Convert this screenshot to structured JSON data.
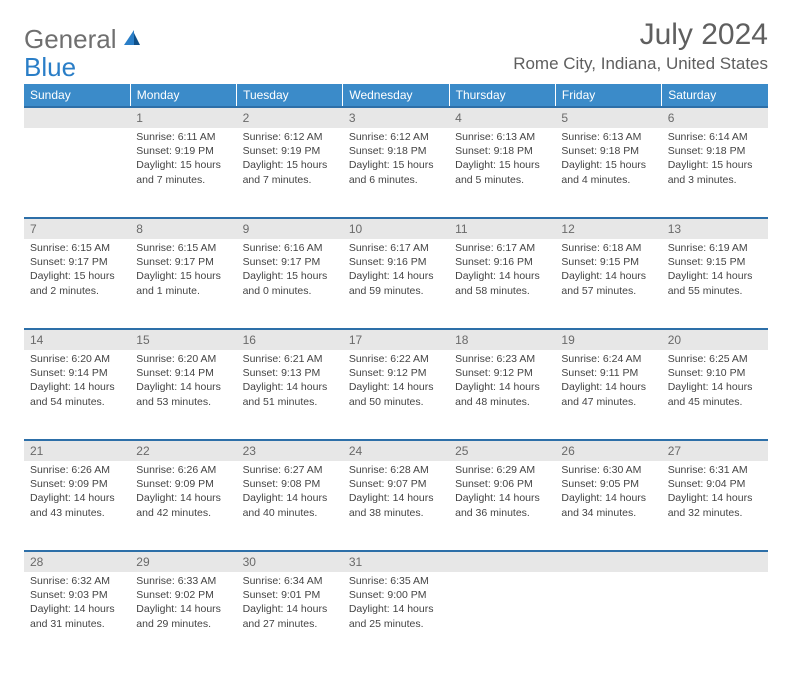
{
  "logo": {
    "general": "General",
    "blue": "Blue"
  },
  "title": "July 2024",
  "location": "Rome City, Indiana, United States",
  "dayHeaders": [
    "Sunday",
    "Monday",
    "Tuesday",
    "Wednesday",
    "Thursday",
    "Friday",
    "Saturday"
  ],
  "colors": {
    "header_bg": "#3b8bc9",
    "header_text": "#ffffff",
    "daynum_bg": "#e7e7e7",
    "border_top": "#2d6fa8",
    "logo_general": "#6f6f6f",
    "logo_blue": "#2a7ec7",
    "title_color": "#5f5f5f",
    "body_text": "#444444",
    "page_bg": "#ffffff"
  },
  "typography": {
    "month_title_pt": 30,
    "location_pt": 17,
    "header_pt": 12,
    "daynum_pt": 12,
    "cell_pt": 10.5,
    "logo_pt": 26
  },
  "weeks": [
    {
      "nums": [
        "",
        "1",
        "2",
        "3",
        "4",
        "5",
        "6"
      ],
      "cells": [
        null,
        {
          "sunrise": "Sunrise: 6:11 AM",
          "sunset": "Sunset: 9:19 PM",
          "day1": "Daylight: 15 hours",
          "day2": "and 7 minutes."
        },
        {
          "sunrise": "Sunrise: 6:12 AM",
          "sunset": "Sunset: 9:19 PM",
          "day1": "Daylight: 15 hours",
          "day2": "and 7 minutes."
        },
        {
          "sunrise": "Sunrise: 6:12 AM",
          "sunset": "Sunset: 9:18 PM",
          "day1": "Daylight: 15 hours",
          "day2": "and 6 minutes."
        },
        {
          "sunrise": "Sunrise: 6:13 AM",
          "sunset": "Sunset: 9:18 PM",
          "day1": "Daylight: 15 hours",
          "day2": "and 5 minutes."
        },
        {
          "sunrise": "Sunrise: 6:13 AM",
          "sunset": "Sunset: 9:18 PM",
          "day1": "Daylight: 15 hours",
          "day2": "and 4 minutes."
        },
        {
          "sunrise": "Sunrise: 6:14 AM",
          "sunset": "Sunset: 9:18 PM",
          "day1": "Daylight: 15 hours",
          "day2": "and 3 minutes."
        }
      ]
    },
    {
      "nums": [
        "7",
        "8",
        "9",
        "10",
        "11",
        "12",
        "13"
      ],
      "cells": [
        {
          "sunrise": "Sunrise: 6:15 AM",
          "sunset": "Sunset: 9:17 PM",
          "day1": "Daylight: 15 hours",
          "day2": "and 2 minutes."
        },
        {
          "sunrise": "Sunrise: 6:15 AM",
          "sunset": "Sunset: 9:17 PM",
          "day1": "Daylight: 15 hours",
          "day2": "and 1 minute."
        },
        {
          "sunrise": "Sunrise: 6:16 AM",
          "sunset": "Sunset: 9:17 PM",
          "day1": "Daylight: 15 hours",
          "day2": "and 0 minutes."
        },
        {
          "sunrise": "Sunrise: 6:17 AM",
          "sunset": "Sunset: 9:16 PM",
          "day1": "Daylight: 14 hours",
          "day2": "and 59 minutes."
        },
        {
          "sunrise": "Sunrise: 6:17 AM",
          "sunset": "Sunset: 9:16 PM",
          "day1": "Daylight: 14 hours",
          "day2": "and 58 minutes."
        },
        {
          "sunrise": "Sunrise: 6:18 AM",
          "sunset": "Sunset: 9:15 PM",
          "day1": "Daylight: 14 hours",
          "day2": "and 57 minutes."
        },
        {
          "sunrise": "Sunrise: 6:19 AM",
          "sunset": "Sunset: 9:15 PM",
          "day1": "Daylight: 14 hours",
          "day2": "and 55 minutes."
        }
      ]
    },
    {
      "nums": [
        "14",
        "15",
        "16",
        "17",
        "18",
        "19",
        "20"
      ],
      "cells": [
        {
          "sunrise": "Sunrise: 6:20 AM",
          "sunset": "Sunset: 9:14 PM",
          "day1": "Daylight: 14 hours",
          "day2": "and 54 minutes."
        },
        {
          "sunrise": "Sunrise: 6:20 AM",
          "sunset": "Sunset: 9:14 PM",
          "day1": "Daylight: 14 hours",
          "day2": "and 53 minutes."
        },
        {
          "sunrise": "Sunrise: 6:21 AM",
          "sunset": "Sunset: 9:13 PM",
          "day1": "Daylight: 14 hours",
          "day2": "and 51 minutes."
        },
        {
          "sunrise": "Sunrise: 6:22 AM",
          "sunset": "Sunset: 9:12 PM",
          "day1": "Daylight: 14 hours",
          "day2": "and 50 minutes."
        },
        {
          "sunrise": "Sunrise: 6:23 AM",
          "sunset": "Sunset: 9:12 PM",
          "day1": "Daylight: 14 hours",
          "day2": "and 48 minutes."
        },
        {
          "sunrise": "Sunrise: 6:24 AM",
          "sunset": "Sunset: 9:11 PM",
          "day1": "Daylight: 14 hours",
          "day2": "and 47 minutes."
        },
        {
          "sunrise": "Sunrise: 6:25 AM",
          "sunset": "Sunset: 9:10 PM",
          "day1": "Daylight: 14 hours",
          "day2": "and 45 minutes."
        }
      ]
    },
    {
      "nums": [
        "21",
        "22",
        "23",
        "24",
        "25",
        "26",
        "27"
      ],
      "cells": [
        {
          "sunrise": "Sunrise: 6:26 AM",
          "sunset": "Sunset: 9:09 PM",
          "day1": "Daylight: 14 hours",
          "day2": "and 43 minutes."
        },
        {
          "sunrise": "Sunrise: 6:26 AM",
          "sunset": "Sunset: 9:09 PM",
          "day1": "Daylight: 14 hours",
          "day2": "and 42 minutes."
        },
        {
          "sunrise": "Sunrise: 6:27 AM",
          "sunset": "Sunset: 9:08 PM",
          "day1": "Daylight: 14 hours",
          "day2": "and 40 minutes."
        },
        {
          "sunrise": "Sunrise: 6:28 AM",
          "sunset": "Sunset: 9:07 PM",
          "day1": "Daylight: 14 hours",
          "day2": "and 38 minutes."
        },
        {
          "sunrise": "Sunrise: 6:29 AM",
          "sunset": "Sunset: 9:06 PM",
          "day1": "Daylight: 14 hours",
          "day2": "and 36 minutes."
        },
        {
          "sunrise": "Sunrise: 6:30 AM",
          "sunset": "Sunset: 9:05 PM",
          "day1": "Daylight: 14 hours",
          "day2": "and 34 minutes."
        },
        {
          "sunrise": "Sunrise: 6:31 AM",
          "sunset": "Sunset: 9:04 PM",
          "day1": "Daylight: 14 hours",
          "day2": "and 32 minutes."
        }
      ]
    },
    {
      "nums": [
        "28",
        "29",
        "30",
        "31",
        "",
        "",
        ""
      ],
      "cells": [
        {
          "sunrise": "Sunrise: 6:32 AM",
          "sunset": "Sunset: 9:03 PM",
          "day1": "Daylight: 14 hours",
          "day2": "and 31 minutes."
        },
        {
          "sunrise": "Sunrise: 6:33 AM",
          "sunset": "Sunset: 9:02 PM",
          "day1": "Daylight: 14 hours",
          "day2": "and 29 minutes."
        },
        {
          "sunrise": "Sunrise: 6:34 AM",
          "sunset": "Sunset: 9:01 PM",
          "day1": "Daylight: 14 hours",
          "day2": "and 27 minutes."
        },
        {
          "sunrise": "Sunrise: 6:35 AM",
          "sunset": "Sunset: 9:00 PM",
          "day1": "Daylight: 14 hours",
          "day2": "and 25 minutes."
        },
        null,
        null,
        null
      ]
    }
  ]
}
